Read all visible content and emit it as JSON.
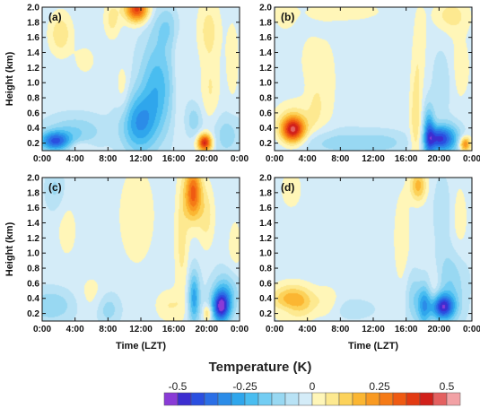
{
  "chart_data": {
    "type": "heatmap",
    "legend": {
      "title": "Temperature (K)",
      "ticks": [
        {
          "value": -0.5,
          "label": "-0.5"
        },
        {
          "value": -0.25,
          "label": "-0.25"
        },
        {
          "value": 0,
          "label": "0"
        },
        {
          "value": 0.25,
          "label": "0.25"
        },
        {
          "value": 0.5,
          "label": "0.5"
        }
      ],
      "levels": [
        -0.55,
        -0.5,
        -0.45,
        -0.4,
        -0.35,
        -0.3,
        -0.25,
        -0.2,
        -0.15,
        -0.1,
        -0.05,
        0,
        0.05,
        0.1,
        0.15,
        0.2,
        0.25,
        0.3,
        0.35,
        0.4,
        0.45,
        0.5,
        0.55
      ],
      "colors": [
        "#8a3bd6",
        "#3c2ed0",
        "#2a4fe0",
        "#2b6fe6",
        "#2b8ce8",
        "#2fa6ec",
        "#49bdf0",
        "#73cdf3",
        "#98d8f2",
        "#b8e2f5",
        "#d4ecf8",
        "#fff6b8",
        "#fde990",
        "#fcd25a",
        "#fbb632",
        "#f99a22",
        "#f57a16",
        "#ef5a12",
        "#e23a12",
        "#d1201a",
        "#e46060",
        "#f2a1a5"
      ]
    },
    "panels": [
      {
        "label": "(a)",
        "xticks": [
          "0:00",
          "4:00",
          "8:00",
          "12:00",
          "16:00",
          "20:00",
          "0:00"
        ],
        "xlabel": "",
        "yticks": [
          "0.2",
          "0.4",
          "0.6",
          "0.8",
          "1.0",
          "1.2",
          "1.4",
          "1.6",
          "1.8",
          "2.0"
        ],
        "ylabel": "Height (km)",
        "xlim": [
          0,
          24
        ],
        "ylim": [
          0.1,
          2.0
        ],
        "features": [
          {
            "t": 1.5,
            "h": 0.22,
            "st": 1.3,
            "sh": 0.09,
            "v": -0.35
          },
          {
            "t": 4,
            "h": 0.35,
            "st": 2.5,
            "sh": 0.15,
            "v": -0.12
          },
          {
            "t": 4.5,
            "h": 0.15,
            "st": 1.0,
            "sh": 0.05,
            "v": 0.08
          },
          {
            "t": 2.2,
            "h": 1.65,
            "st": 1.0,
            "sh": 0.2,
            "v": 0.12
          },
          {
            "t": 5.2,
            "h": 1.3,
            "st": 1.0,
            "sh": 0.15,
            "v": 0.05
          },
          {
            "t": 8.5,
            "h": 1.85,
            "st": 0.7,
            "sh": 0.18,
            "v": 0.1
          },
          {
            "t": 9.8,
            "h": 0.9,
            "st": 0.6,
            "sh": 0.25,
            "v": 0.07
          },
          {
            "t": 11.5,
            "h": 1.98,
            "st": 1.0,
            "sh": 0.12,
            "v": 0.4
          },
          {
            "t": 11.7,
            "h": 0.45,
            "st": 1.5,
            "sh": 0.28,
            "v": -0.25
          },
          {
            "t": 14,
            "h": 0.95,
            "st": 1.5,
            "sh": 0.45,
            "v": -0.2
          },
          {
            "t": 15.2,
            "h": 1.75,
            "st": 1.2,
            "sh": 0.2,
            "v": -0.1
          },
          {
            "t": 16.6,
            "h": 1.1,
            "st": 0.5,
            "sh": 0.6,
            "v": 0.06
          },
          {
            "t": 19.8,
            "h": 0.2,
            "st": 0.6,
            "sh": 0.08,
            "v": 0.45
          },
          {
            "t": 20.5,
            "h": 0.9,
            "st": 0.8,
            "sh": 0.3,
            "v": 0.08
          },
          {
            "t": 20.3,
            "h": 1.7,
            "st": 1.0,
            "sh": 0.3,
            "v": 0.1
          },
          {
            "t": 18.5,
            "h": 0.5,
            "st": 0.7,
            "sh": 0.15,
            "v": -0.1
          },
          {
            "t": 22.5,
            "h": 0.3,
            "st": 1.2,
            "sh": 0.2,
            "v": -0.1
          },
          {
            "t": 23.2,
            "h": 1.3,
            "st": 0.6,
            "sh": 0.4,
            "v": 0.06
          }
        ]
      },
      {
        "label": "(b)",
        "xticks": [
          "0:00",
          "4:00",
          "8:00",
          "12:00",
          "16:00",
          "20:00",
          "0:00"
        ],
        "xlabel": "",
        "yticks": [
          "0.2",
          "0.4",
          "0.6",
          "0.8",
          "1.0",
          "1.2",
          "1.4",
          "1.6",
          "1.8",
          "2.0"
        ],
        "ylabel": "",
        "xlim": [
          0,
          24
        ],
        "ylim": [
          0.1,
          2.0
        ],
        "features": [
          {
            "t": 2.2,
            "h": 0.37,
            "st": 1.0,
            "sh": 0.12,
            "v": 0.45
          },
          {
            "t": 2.5,
            "h": 0.5,
            "st": 2.0,
            "sh": 0.2,
            "v": 0.08
          },
          {
            "t": 5,
            "h": 0.7,
            "st": 0.7,
            "sh": 0.25,
            "v": 0.06
          },
          {
            "t": 4.5,
            "h": 1.3,
            "st": 1.2,
            "sh": 0.3,
            "v": 0.05
          },
          {
            "t": 6.5,
            "h": 1.0,
            "st": 0.8,
            "sh": 0.4,
            "v": 0.05
          },
          {
            "t": 1.2,
            "h": 1.9,
            "st": 1.0,
            "sh": 0.15,
            "v": 0.06
          },
          {
            "t": 8.5,
            "h": 1.95,
            "st": 3.5,
            "sh": 0.1,
            "v": 0.06
          },
          {
            "t": 8,
            "h": 0.2,
            "st": 4.0,
            "sh": 0.12,
            "v": -0.1
          },
          {
            "t": 13.5,
            "h": 0.2,
            "st": 2.0,
            "sh": 0.1,
            "v": -0.06
          },
          {
            "t": 17.2,
            "h": 0.5,
            "st": 0.5,
            "sh": 0.5,
            "v": 0.12
          },
          {
            "t": 17.7,
            "h": 1.5,
            "st": 0.6,
            "sh": 0.4,
            "v": 0.06
          },
          {
            "t": 18.8,
            "h": 0.3,
            "st": 0.5,
            "sh": 0.25,
            "v": -0.3
          },
          {
            "t": 20.0,
            "h": 0.25,
            "st": 0.9,
            "sh": 0.12,
            "v": -0.35
          },
          {
            "t": 21.5,
            "h": 0.25,
            "st": 1.0,
            "sh": 0.15,
            "v": -0.2
          },
          {
            "t": 23.2,
            "h": 0.18,
            "st": 0.5,
            "sh": 0.07,
            "v": 0.3
          },
          {
            "t": 21.5,
            "h": 1.9,
            "st": 1.5,
            "sh": 0.15,
            "v": 0.1
          },
          {
            "t": 22.5,
            "h": 1.2,
            "st": 1.2,
            "sh": 0.4,
            "v": 0.05
          },
          {
            "t": 20.5,
            "h": 1.0,
            "st": 0.8,
            "sh": 0.3,
            "v": -0.08
          }
        ]
      },
      {
        "label": "(c)",
        "xticks": [
          "0:00",
          "4:00",
          "8:00",
          "12:00",
          "16:00",
          "20:00",
          "0:00"
        ],
        "xlabel": "Time (LZT)",
        "yticks": [
          "0.2",
          "0.4",
          "0.6",
          "0.8",
          "1.0",
          "1.2",
          "1.4",
          "1.6",
          "1.8",
          "2.0"
        ],
        "ylabel": "Height (km)",
        "xlim": [
          0,
          24
        ],
        "ylim": [
          0.1,
          2.0
        ],
        "features": [
          {
            "t": 1,
            "h": 0.3,
            "st": 2.0,
            "sh": 0.15,
            "v": -0.12
          },
          {
            "t": 6,
            "h": 0.45,
            "st": 1.2,
            "sh": 0.2,
            "v": 0.05
          },
          {
            "t": 3,
            "h": 1.3,
            "st": 1.0,
            "sh": 0.3,
            "v": 0.05
          },
          {
            "t": 1.5,
            "h": 1.85,
            "st": 0.8,
            "sh": 0.2,
            "v": -0.08
          },
          {
            "t": 8,
            "h": 0.25,
            "st": 1.0,
            "sh": 0.15,
            "v": -0.1
          },
          {
            "t": 11.5,
            "h": 1.5,
            "st": 1.5,
            "sh": 0.45,
            "v": 0.08
          },
          {
            "t": 15.5,
            "h": 0.3,
            "st": 1.2,
            "sh": 0.15,
            "v": 0.08
          },
          {
            "t": 17,
            "h": 1.2,
            "st": 0.6,
            "sh": 0.6,
            "v": 0.1
          },
          {
            "t": 18.4,
            "h": 1.8,
            "st": 0.7,
            "sh": 0.25,
            "v": 0.35
          },
          {
            "t": 18.5,
            "h": 0.4,
            "st": 0.5,
            "sh": 0.25,
            "v": -0.25
          },
          {
            "t": 20,
            "h": 1.5,
            "st": 0.7,
            "sh": 0.3,
            "v": 0.1
          },
          {
            "t": 21.8,
            "h": 0.28,
            "st": 0.8,
            "sh": 0.15,
            "v": -0.45
          },
          {
            "t": 22.5,
            "h": 0.5,
            "st": 1.2,
            "sh": 0.2,
            "v": -0.15
          },
          {
            "t": 20.2,
            "h": 0.2,
            "st": 0.4,
            "sh": 0.08,
            "v": 0.15
          },
          {
            "t": 23.5,
            "h": 1.0,
            "st": 0.8,
            "sh": 0.4,
            "v": 0.05
          }
        ]
      },
      {
        "label": "(d)",
        "xticks": [
          "0:00",
          "4:00",
          "8:00",
          "12:00",
          "16:00",
          "20:00",
          "0:00"
        ],
        "xlabel": "Time (LZT)",
        "yticks": [
          "0.2",
          "0.4",
          "0.6",
          "0.8",
          "1.0",
          "1.2",
          "1.4",
          "1.6",
          "1.8",
          "2.0"
        ],
        "ylabel": "",
        "xlim": [
          0,
          24
        ],
        "ylim": [
          0.1,
          2.0
        ],
        "features": [
          {
            "t": 2.2,
            "h": 0.35,
            "st": 1.8,
            "sh": 0.15,
            "v": 0.25
          },
          {
            "t": 1.5,
            "h": 0.25,
            "st": 1.2,
            "sh": 0.08,
            "v": -0.08
          },
          {
            "t": 6.5,
            "h": 0.35,
            "st": 1.0,
            "sh": 0.15,
            "v": 0.06
          },
          {
            "t": 2.0,
            "h": 1.85,
            "st": 1.0,
            "sh": 0.2,
            "v": 0.06
          },
          {
            "t": 9.5,
            "h": 0.25,
            "st": 2.0,
            "sh": 0.1,
            "v": -0.05
          },
          {
            "t": 15.5,
            "h": 1.2,
            "st": 0.8,
            "sh": 0.5,
            "v": 0.06
          },
          {
            "t": 16.8,
            "h": 0.4,
            "st": 0.6,
            "sh": 0.25,
            "v": -0.1
          },
          {
            "t": 17.5,
            "h": 1.9,
            "st": 0.7,
            "sh": 0.15,
            "v": 0.2
          },
          {
            "t": 18.2,
            "h": 0.3,
            "st": 0.6,
            "sh": 0.2,
            "v": -0.25
          },
          {
            "t": 20.5,
            "h": 0.28,
            "st": 1.0,
            "sh": 0.12,
            "v": -0.42
          },
          {
            "t": 21.5,
            "h": 0.6,
            "st": 1.3,
            "sh": 0.35,
            "v": -0.12
          },
          {
            "t": 19.5,
            "h": 0.55,
            "st": 0.5,
            "sh": 0.2,
            "v": 0.06
          },
          {
            "t": 22.5,
            "h": 1.4,
            "st": 0.8,
            "sh": 0.4,
            "v": 0.06
          },
          {
            "t": 20.5,
            "h": 1.6,
            "st": 0.8,
            "sh": 0.3,
            "v": -0.06
          }
        ]
      }
    ]
  }
}
